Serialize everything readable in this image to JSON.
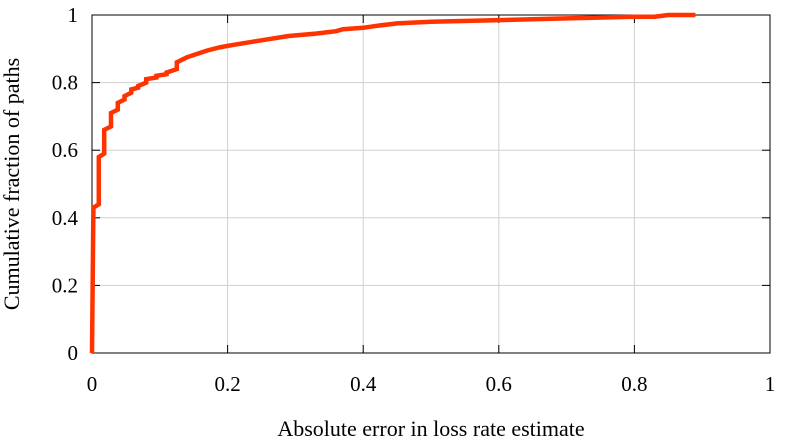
{
  "chart_data": {
    "type": "line",
    "title": "",
    "xlabel": "Absolute error in loss rate estimate",
    "ylabel": "Cumulative fraction of paths",
    "xlim": [
      0,
      1
    ],
    "ylim": [
      0,
      1
    ],
    "xticks": [
      0,
      0.2,
      0.4,
      0.6,
      0.8,
      1
    ],
    "yticks": [
      0,
      0.2,
      0.4,
      0.6,
      0.8,
      1
    ],
    "xtick_labels": [
      "0",
      "0.2",
      "0.4",
      "0.6",
      "0.8",
      "1"
    ],
    "ytick_labels": [
      "0",
      "0.2",
      "0.4",
      "0.6",
      "0.8",
      "1"
    ],
    "grid": true,
    "legend": "none",
    "series": [
      {
        "color": "#ff3300",
        "step": true,
        "x": [
          0,
          0.002,
          0.002,
          0.01,
          0.01,
          0.018,
          0.018,
          0.028,
          0.028,
          0.038,
          0.038,
          0.048,
          0.048,
          0.058,
          0.058,
          0.068,
          0.068,
          0.08,
          0.08,
          0.095,
          0.095,
          0.11,
          0.11,
          0.125,
          0.125,
          0.14,
          0.155,
          0.17,
          0.19,
          0.21,
          0.25,
          0.29,
          0.33,
          0.36,
          0.37,
          0.4,
          0.42,
          0.45,
          0.5,
          0.6,
          0.7,
          0.8,
          0.83,
          0.85,
          0.89
        ],
        "y": [
          0,
          0.43,
          0.43,
          0.44,
          0.58,
          0.59,
          0.66,
          0.67,
          0.71,
          0.72,
          0.74,
          0.75,
          0.76,
          0.77,
          0.78,
          0.785,
          0.79,
          0.8,
          0.81,
          0.815,
          0.82,
          0.825,
          0.83,
          0.84,
          0.86,
          0.875,
          0.885,
          0.895,
          0.905,
          0.912,
          0.925,
          0.938,
          0.945,
          0.952,
          0.958,
          0.962,
          0.968,
          0.975,
          0.98,
          0.985,
          0.99,
          0.995,
          0.995,
          1.0,
          1.0
        ]
      }
    ]
  }
}
